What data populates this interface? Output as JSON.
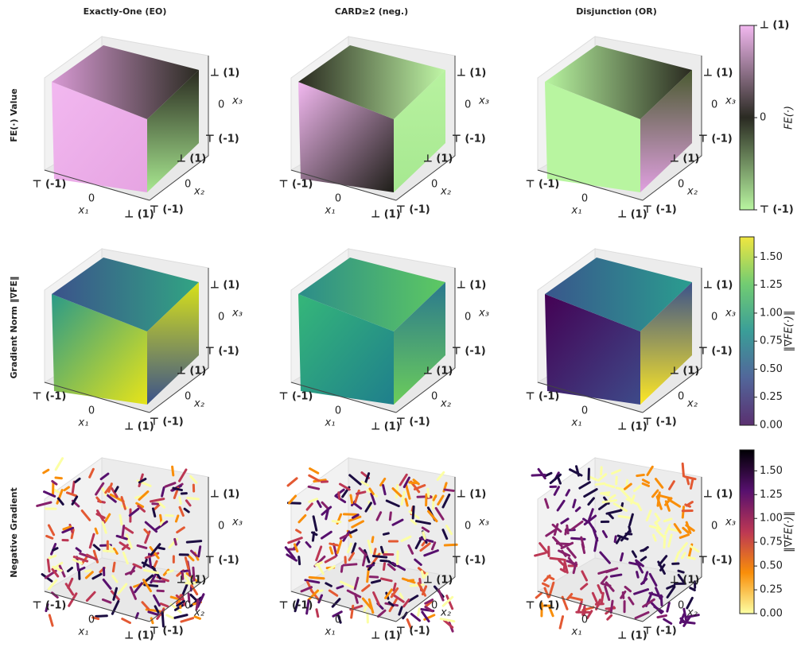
{
  "columns": [
    "Exactly-One (EO)",
    "CARD≥2 (neg.)",
    "Disjunction (OR)"
  ],
  "rows": [
    {
      "label": "FE(·) Value",
      "colorbar": {
        "label": "FE(·)",
        "ylim": [
          -1,
          1
        ],
        "yticks": [
          {
            "value": -1,
            "label": "⊤ (-1)"
          },
          0,
          {
            "value": 1,
            "label": "⊥ (1)"
          }
        ],
        "tick_colors": [
          "#2ca02c",
          "#444444",
          "#d62728"
        ],
        "colors": [
          "#b8f5a0",
          "#2a2a22",
          "#f2b8f0"
        ]
      }
    },
    {
      "label": "Gradient Norm ‖∇FE‖",
      "colorbar": {
        "label": "‖∇FE(·)‖",
        "ylim": [
          0,
          1.68
        ],
        "yticks": [
          {
            "value": 0,
            "label": "0.00"
          },
          0.25,
          {
            "value": 0.5,
            "label": "0.50"
          },
          0.75,
          {
            "value": 1,
            "label": "1.00"
          },
          1.25,
          {
            "value": 1.5,
            "label": "1.50"
          }
        ],
        "tick_colors": [
          "#222222",
          "#222222",
          "#222222",
          "#222222",
          "#222222",
          "#222222",
          "#222222"
        ],
        "colors": [
          "#5a3070",
          "#52669a",
          "#3a9e98",
          "#72cc72",
          "#f0e640"
        ]
      }
    },
    {
      "label": "Negative Gradient",
      "colorbar": {
        "label": "‖∇FE(·)‖",
        "ylim": [
          0,
          1.72
        ],
        "yticks": [
          {
            "value": 0,
            "label": "0.00"
          },
          0.25,
          {
            "value": 0.5,
            "label": "0.50"
          },
          0.75,
          {
            "value": 1,
            "label": "1.00"
          },
          1.25,
          {
            "value": 1.5,
            "label": "1.50"
          }
        ],
        "tick_colors": [
          "#222222",
          "#222222",
          "#222222",
          "#222222",
          "#222222",
          "#222222",
          "#222222"
        ],
        "colors": [
          "#fcffa4",
          "#f98e09",
          "#bc3754",
          "#57106e",
          "#000004"
        ]
      }
    }
  ],
  "axes": {
    "names": [
      "x₁",
      "x₂",
      "x₃"
    ],
    "ticks": [
      {
        "value": -1,
        "label": "⊤ (-1)"
      },
      0,
      {
        "value": 1,
        "label": "⊥ (1)"
      }
    ],
    "tick_colors": [
      "#2ca02c",
      "#444444",
      "#d62728"
    ]
  }
}
